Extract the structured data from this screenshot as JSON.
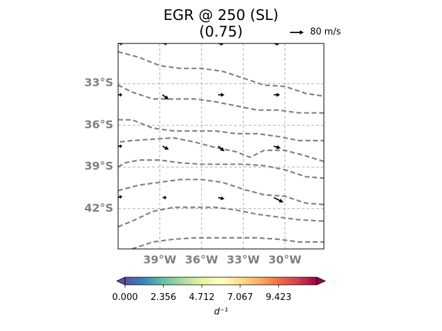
{
  "chart_data": {
    "type": "map-contour-quiver",
    "title_line1": "EGR @ 250 (SL)",
    "title_line2": "(0.75)",
    "quiver_key": {
      "label": "80 m/s",
      "speed": 80
    },
    "lat_ticks": [
      {
        "value": -33,
        "label": "33°S"
      },
      {
        "value": -36,
        "label": "36°S"
      },
      {
        "value": -39,
        "label": "39°S"
      },
      {
        "value": -42,
        "label": "42°S"
      }
    ],
    "lon_ticks": [
      {
        "value": -39,
        "label": "39°W"
      },
      {
        "value": -36,
        "label": "36°W"
      },
      {
        "value": -33,
        "label": "33°W"
      },
      {
        "value": -30,
        "label": "30°W"
      }
    ],
    "extent": {
      "lon": [
        -42,
        -27.2
      ],
      "lat": [
        -44.9,
        -30.1
      ]
    },
    "grid": true,
    "contour_style": {
      "color": "#808080",
      "dash": "dashed"
    },
    "contours": [
      {
        "points": [
          [
            -42,
            -30.7
          ],
          [
            -40.5,
            -31.1
          ],
          [
            -39,
            -31.7
          ],
          [
            -37.5,
            -31.9
          ],
          [
            -36,
            -31.9
          ],
          [
            -34.5,
            -32.1
          ],
          [
            -33,
            -32.6
          ],
          [
            -31.5,
            -33.1
          ],
          [
            -30,
            -33.2
          ],
          [
            -28.5,
            -33.7
          ],
          [
            -27.2,
            -33.9
          ]
        ]
      },
      {
        "points": [
          [
            -42,
            -33.1
          ],
          [
            -41,
            -33.6
          ],
          [
            -39.5,
            -34.1
          ],
          [
            -38,
            -34.1
          ],
          [
            -36.5,
            -34.1
          ],
          [
            -35,
            -34.3
          ],
          [
            -33.5,
            -34.6
          ],
          [
            -32,
            -34.9
          ],
          [
            -30.5,
            -34.9
          ],
          [
            -29,
            -35.1
          ],
          [
            -27.2,
            -35.1
          ]
        ]
      },
      {
        "points": [
          [
            -42,
            -35.6
          ],
          [
            -41,
            -35.6
          ],
          [
            -39.5,
            -36.2
          ],
          [
            -38,
            -36.4
          ],
          [
            -36.5,
            -36.4
          ],
          [
            -35,
            -36.4
          ],
          [
            -33.5,
            -36.6
          ],
          [
            -32,
            -36.6
          ],
          [
            -30.5,
            -36.8
          ],
          [
            -29,
            -37.1
          ],
          [
            -27.2,
            -37.1
          ]
        ]
      },
      {
        "points": [
          [
            -27.2,
            -38.6
          ],
          [
            -28.5,
            -38.2
          ],
          [
            -30,
            -37.8
          ],
          [
            -31.5,
            -37.8
          ],
          [
            -32.5,
            -38.3
          ],
          [
            -33.5,
            -37.9
          ],
          [
            -35,
            -37.6
          ],
          [
            -36.5,
            -37.2
          ],
          [
            -38,
            -36.9
          ],
          [
            -39.5,
            -37.0
          ],
          [
            -41,
            -37.1
          ],
          [
            -42,
            -37.2
          ]
        ]
      },
      {
        "points": [
          [
            -42,
            -39.0
          ],
          [
            -41.5,
            -38.7
          ],
          [
            -40.5,
            -38.5
          ],
          [
            -39,
            -38.5
          ],
          [
            -37.5,
            -38.7
          ],
          [
            -36,
            -38.8
          ],
          [
            -34.5,
            -38.8
          ],
          [
            -33,
            -38.8
          ],
          [
            -31.5,
            -38.9
          ],
          [
            -30,
            -39.2
          ],
          [
            -28.5,
            -39.7
          ],
          [
            -27.2,
            -39.8
          ]
        ]
      },
      {
        "points": [
          [
            -42,
            -40.7
          ],
          [
            -40.5,
            -40.3
          ],
          [
            -39,
            -40.1
          ],
          [
            -37.5,
            -39.9
          ],
          [
            -36,
            -39.9
          ],
          [
            -34.5,
            -40.1
          ],
          [
            -33,
            -40.6
          ],
          [
            -31.5,
            -41.0
          ],
          [
            -30,
            -41.1
          ],
          [
            -28.5,
            -41.6
          ],
          [
            -27.2,
            -41.7
          ]
        ]
      },
      {
        "points": [
          [
            -42,
            -43.3
          ],
          [
            -41,
            -42.9
          ],
          [
            -39.5,
            -42.2
          ],
          [
            -38,
            -41.9
          ],
          [
            -36.5,
            -41.9
          ],
          [
            -35,
            -41.9
          ],
          [
            -33.5,
            -42.1
          ],
          [
            -32,
            -42.4
          ],
          [
            -30.5,
            -42.6
          ],
          [
            -29,
            -42.8
          ],
          [
            -27.2,
            -42.9
          ]
        ]
      },
      {
        "points": [
          [
            -41,
            -44.9
          ],
          [
            -39.5,
            -44.4
          ],
          [
            -38,
            -44.2
          ],
          [
            -36.5,
            -44.1
          ],
          [
            -35,
            -44.1
          ],
          [
            -33.5,
            -44.1
          ],
          [
            -32,
            -44.1
          ],
          [
            -30.5,
            -44.2
          ],
          [
            -29,
            -44.4
          ],
          [
            -27.2,
            -44.4
          ]
        ]
      }
    ],
    "wind_vectors": [
      {
        "lon": -42,
        "lat": -30.1,
        "u": 15,
        "v": 0
      },
      {
        "lon": -38.8,
        "lat": -30.1,
        "u": 15,
        "v": 0
      },
      {
        "lon": -34.8,
        "lat": -30.1,
        "u": 15,
        "v": -2
      },
      {
        "lon": -30.8,
        "lat": -30.1,
        "u": 15,
        "v": -2
      },
      {
        "lon": -42,
        "lat": -33.8,
        "u": 12,
        "v": 0
      },
      {
        "lon": -38.8,
        "lat": -33.8,
        "u": 18,
        "v": -14
      },
      {
        "lon": -34.8,
        "lat": -33.8,
        "u": 18,
        "v": 0
      },
      {
        "lon": -30.8,
        "lat": -33.8,
        "u": 18,
        "v": 0
      },
      {
        "lon": -42,
        "lat": -37.5,
        "u": 12,
        "v": 0
      },
      {
        "lon": -38.8,
        "lat": -37.5,
        "u": 18,
        "v": -10
      },
      {
        "lon": -34.8,
        "lat": -37.5,
        "u": 18,
        "v": -15
      },
      {
        "lon": -30.8,
        "lat": -37.5,
        "u": 20,
        "v": -6
      },
      {
        "lon": -42,
        "lat": -41.2,
        "u": 12,
        "v": 4
      },
      {
        "lon": -38.8,
        "lat": -41.2,
        "u": 12,
        "v": 0
      },
      {
        "lon": -34.8,
        "lat": -41.2,
        "u": 18,
        "v": -4
      },
      {
        "lon": -30.8,
        "lat": -41.2,
        "u": 28,
        "v": -14
      }
    ],
    "colorbar": {
      "vmin": 0,
      "vmax": 11.78,
      "colormap": "Spectral_r",
      "extend": "both",
      "tick_labels": [
        "0.000",
        "2.356",
        "4.712",
        "7.067",
        "9.423"
      ],
      "tick_values": [
        0,
        2.356,
        4.712,
        7.067,
        9.423
      ],
      "unit_label": "d⁻¹"
    },
    "colors": {
      "grid": "#b0b0b0",
      "contour": "#808080",
      "tick_label": "#808080",
      "spectral_r": [
        "#5e4fa2",
        "#3288bd",
        "#66c2a5",
        "#abdda4",
        "#e6f598",
        "#ffffbf",
        "#fee08b",
        "#fdae61",
        "#f46d43",
        "#d53e4f",
        "#9e0142"
      ]
    }
  }
}
